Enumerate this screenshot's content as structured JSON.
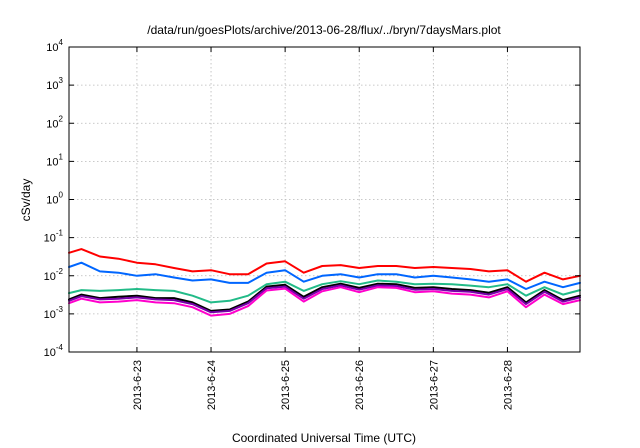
{
  "chart_data": {
    "type": "line",
    "title": "/data/run/goesPlots/archive/2013-06-28/flux/../bryn/7daysMars.plot",
    "xlabel": "Coordinated Universal Time (UTC)",
    "ylabel": "cSv/day",
    "yscale": "log",
    "ylim": [
      0.0001,
      10000
    ],
    "xlim": [
      "2013-06-22T02:00",
      "2013-06-28T23:30"
    ],
    "grid": true,
    "legend": "none",
    "y_ticks": [
      {
        "base": "10",
        "exp": "-4",
        "value": 0.0001
      },
      {
        "base": "10",
        "exp": "-3",
        "value": 0.001
      },
      {
        "base": "10",
        "exp": "-2",
        "value": 0.01
      },
      {
        "base": "10",
        "exp": "-1",
        "value": 0.1
      },
      {
        "base": "10",
        "exp": "0",
        "value": 1
      },
      {
        "base": "10",
        "exp": "1",
        "value": 10
      },
      {
        "base": "10",
        "exp": "2",
        "value": 100
      },
      {
        "base": "10",
        "exp": "3",
        "value": 1000
      },
      {
        "base": "10",
        "exp": "4",
        "value": 10000
      }
    ],
    "x_ticks": [
      {
        "label": "2013-6-23",
        "date": "2013-06-23"
      },
      {
        "label": "2013-6-24",
        "date": "2013-06-24"
      },
      {
        "label": "2013-6-25",
        "date": "2013-06-25"
      },
      {
        "label": "2013-6-26",
        "date": "2013-06-26"
      },
      {
        "label": "2013-6-27",
        "date": "2013-06-27"
      },
      {
        "label": "2013-6-28",
        "date": "2013-06-28"
      }
    ],
    "x": [
      "2013-06-22T02:00",
      "2013-06-22T06:00",
      "2013-06-22T12:00",
      "2013-06-22T18:00",
      "2013-06-23T00:00",
      "2013-06-23T06:00",
      "2013-06-23T12:00",
      "2013-06-23T18:00",
      "2013-06-24T00:00",
      "2013-06-24T06:00",
      "2013-06-24T12:00",
      "2013-06-24T18:00",
      "2013-06-25T00:00",
      "2013-06-25T06:00",
      "2013-06-25T12:00",
      "2013-06-25T18:00",
      "2013-06-26T00:00",
      "2013-06-26T06:00",
      "2013-06-26T12:00",
      "2013-06-26T18:00",
      "2013-06-27T00:00",
      "2013-06-27T06:00",
      "2013-06-27T12:00",
      "2013-06-27T18:00",
      "2013-06-28T00:00",
      "2013-06-28T06:00",
      "2013-06-28T12:00",
      "2013-06-28T18:00",
      "2013-06-28T23:30"
    ],
    "series": [
      {
        "color": "#ff0000",
        "values": [
          0.04,
          0.05,
          0.032,
          0.028,
          0.022,
          0.02,
          0.016,
          0.013,
          0.014,
          0.011,
          0.011,
          0.021,
          0.024,
          0.012,
          0.018,
          0.019,
          0.016,
          0.018,
          0.018,
          0.016,
          0.017,
          0.016,
          0.015,
          0.013,
          0.014,
          0.007,
          0.012,
          0.008,
          0.01
        ]
      },
      {
        "color": "#0066ff",
        "values": [
          0.017,
          0.022,
          0.013,
          0.012,
          0.01,
          0.011,
          0.009,
          0.0075,
          0.008,
          0.0065,
          0.0065,
          0.012,
          0.014,
          0.007,
          0.01,
          0.011,
          0.009,
          0.011,
          0.011,
          0.009,
          0.01,
          0.009,
          0.008,
          0.007,
          0.008,
          0.0045,
          0.007,
          0.005,
          0.0065
        ]
      },
      {
        "color": "#22bb88",
        "values": [
          0.0035,
          0.0042,
          0.004,
          0.0042,
          0.0045,
          0.0042,
          0.004,
          0.003,
          0.002,
          0.0022,
          0.003,
          0.006,
          0.007,
          0.004,
          0.006,
          0.0072,
          0.006,
          0.0075,
          0.007,
          0.006,
          0.0062,
          0.006,
          0.0055,
          0.005,
          0.006,
          0.003,
          0.005,
          0.0032,
          0.0042
        ]
      },
      {
        "color": "#000000",
        "values": [
          0.0024,
          0.0032,
          0.0026,
          0.0028,
          0.003,
          0.0026,
          0.0026,
          0.002,
          0.0012,
          0.0013,
          0.0021,
          0.0052,
          0.0058,
          0.0028,
          0.005,
          0.0062,
          0.0048,
          0.0062,
          0.006,
          0.0048,
          0.005,
          0.0045,
          0.0042,
          0.0036,
          0.005,
          0.002,
          0.0042,
          0.0023,
          0.003
        ]
      },
      {
        "color": "#7700aa",
        "values": [
          0.0022,
          0.0029,
          0.0024,
          0.0025,
          0.0027,
          0.0024,
          0.0023,
          0.0018,
          0.0011,
          0.0012,
          0.0019,
          0.0047,
          0.0052,
          0.0025,
          0.0045,
          0.0056,
          0.0043,
          0.0056,
          0.0054,
          0.0043,
          0.0045,
          0.004,
          0.0038,
          0.0032,
          0.0045,
          0.0018,
          0.0038,
          0.0021,
          0.0027
        ]
      },
      {
        "color": "#ff00cc",
        "values": [
          0.0019,
          0.0025,
          0.002,
          0.0021,
          0.0023,
          0.002,
          0.0019,
          0.0015,
          0.0009,
          0.001,
          0.0016,
          0.0041,
          0.0046,
          0.0021,
          0.0039,
          0.005,
          0.0037,
          0.005,
          0.0048,
          0.0037,
          0.0039,
          0.0034,
          0.0032,
          0.0027,
          0.0039,
          0.0015,
          0.0032,
          0.0018,
          0.0023
        ]
      }
    ]
  }
}
